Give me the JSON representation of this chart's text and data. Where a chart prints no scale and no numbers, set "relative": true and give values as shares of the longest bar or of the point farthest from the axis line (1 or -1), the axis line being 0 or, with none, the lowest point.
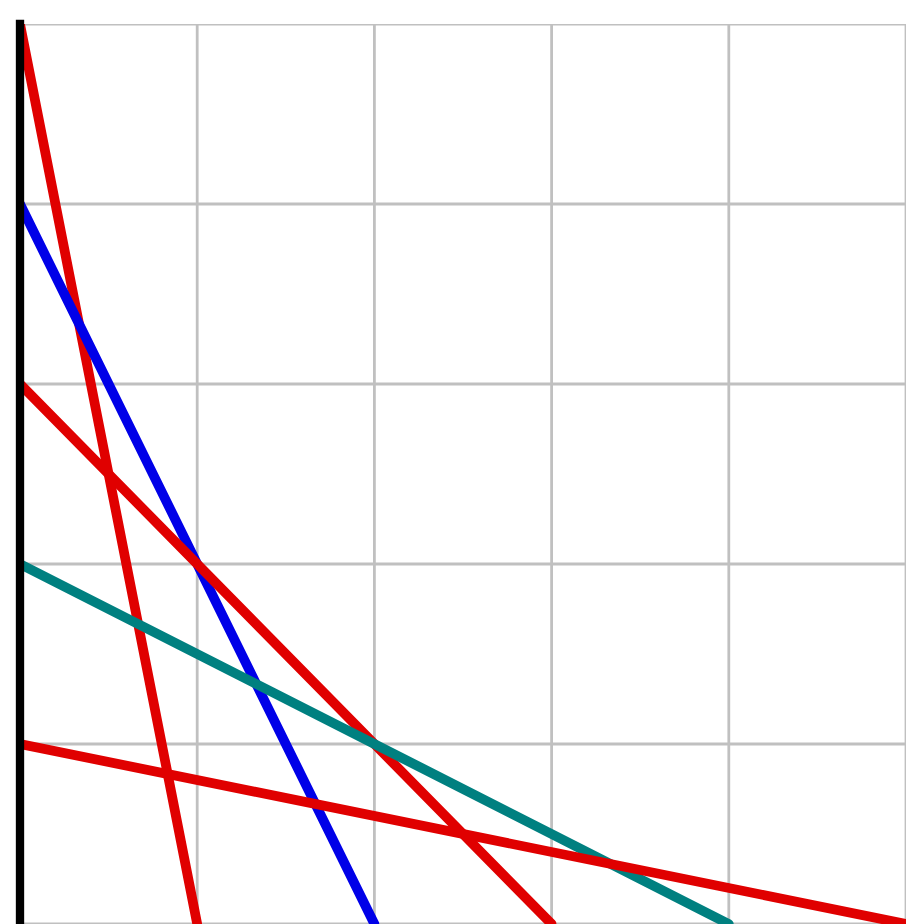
{
  "chart_data": {
    "type": "line",
    "relative": true,
    "grid": true,
    "legend": false,
    "marker": "none",
    "line_style": "solid",
    "categories": [
      null,
      null,
      null,
      null,
      null,
      null
    ],
    "series": [
      {
        "color": "#e00000",
        "values": [
          1,
          0,
          null,
          null,
          null,
          null
        ]
      },
      {
        "color": "#0000e8",
        "values": [
          0.8,
          null,
          0,
          null,
          null,
          null
        ]
      },
      {
        "color": "#e00000",
        "values": [
          0.6,
          null,
          null,
          0,
          null,
          null
        ]
      },
      {
        "color": "#008080",
        "values": [
          0.4,
          null,
          null,
          null,
          0,
          null
        ]
      },
      {
        "color": "#e00000",
        "values": [
          0.2,
          null,
          null,
          null,
          null,
          0
        ]
      }
    ]
  }
}
